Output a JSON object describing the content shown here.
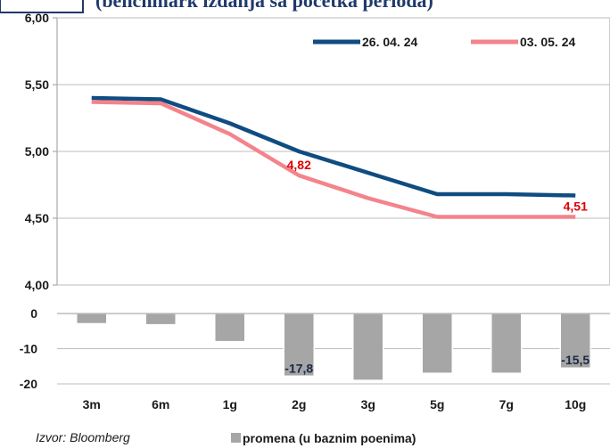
{
  "chart_data": [
    {
      "type": "line",
      "title": "(benchmark izdanja sa početka perioda)",
      "categories": [
        "3m",
        "6m",
        "1g",
        "2g",
        "3g",
        "5g",
        "7g",
        "10g"
      ],
      "ylim": [
        4.0,
        6.0
      ],
      "yticks": [
        "4,00",
        "4,50",
        "5,00",
        "5,50",
        "6,00"
      ],
      "grid": true,
      "legend_position": "top-right",
      "series": [
        {
          "name": "26. 04. 24",
          "color": "#0f4c81",
          "values": [
            5.4,
            5.39,
            5.21,
            5.0,
            4.84,
            4.68,
            4.68,
            4.67
          ]
        },
        {
          "name": "03. 05. 24",
          "color": "#f4838b",
          "values": [
            5.37,
            5.36,
            5.13,
            4.82,
            4.65,
            4.51,
            4.51,
            4.51
          ]
        }
      ],
      "annotations": [
        {
          "series": 1,
          "index": 3,
          "text": "4,82"
        },
        {
          "series": 1,
          "index": 7,
          "text": "4,51"
        }
      ]
    },
    {
      "type": "bar",
      "categories": [
        "3m",
        "6m",
        "1g",
        "2g",
        "3g",
        "5g",
        "7g",
        "10g"
      ],
      "ylim": [
        -20,
        0
      ],
      "yticks": [
        "-20",
        "-10",
        "0"
      ],
      "series": [
        {
          "name": "promena (u baznim poenima)",
          "color": "#a6a6a6",
          "values": [
            -2.9,
            -3.2,
            -8.0,
            -17.8,
            -19.0,
            -17.0,
            -17.0,
            -15.5
          ]
        }
      ],
      "annotations": [
        {
          "index": 3,
          "text": "-17,8"
        },
        {
          "index": 7,
          "text": "-15,5"
        }
      ]
    }
  ],
  "source": "Izvor: Bloomberg"
}
